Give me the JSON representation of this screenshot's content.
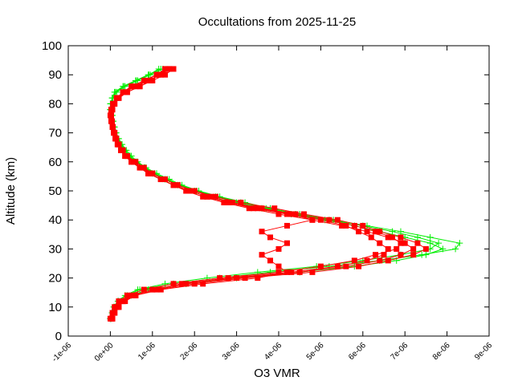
{
  "chart_data": {
    "type": "line",
    "title": "Occultations from 2025-11-25",
    "xlabel": "O3 VMR",
    "ylabel": "Altitude (km)",
    "xlim": [
      -1e-06,
      9e-06
    ],
    "ylim": [
      0,
      100
    ],
    "grid": false,
    "legend": "none",
    "x_ticks": [
      "-1e-06",
      "0e+00",
      "1e-06",
      "2e-06",
      "3e-06",
      "4e-06",
      "5e-06",
      "6e-06",
      "7e-06",
      "8e-06",
      "9e-06"
    ],
    "x_tick_values": [
      -1e-06,
      0,
      1e-06,
      2e-06,
      3e-06,
      4e-06,
      5e-06,
      6e-06,
      7e-06,
      8e-06,
      9e-06
    ],
    "y_ticks": [
      "0",
      "10",
      "20",
      "30",
      "40",
      "50",
      "60",
      "70",
      "80",
      "90",
      "100"
    ],
    "y_tick_values": [
      0,
      10,
      20,
      30,
      40,
      50,
      60,
      70,
      80,
      90,
      100
    ],
    "vmr_scale": 1e-06,
    "altitudes": [
      6,
      8,
      10,
      12,
      14,
      16,
      18,
      20,
      22,
      24,
      26,
      28,
      30,
      32,
      34,
      36,
      38,
      40,
      42,
      44,
      46,
      48,
      50,
      52,
      54,
      56,
      58,
      60,
      62,
      64,
      66,
      68,
      70,
      72,
      74,
      76,
      78,
      80,
      82,
      84,
      86,
      88,
      90,
      92
    ],
    "series": [
      {
        "name": "green-profiles",
        "color": "#00ee00",
        "marker": "cross",
        "profiles": [
          [
            0.0,
            0.05,
            0.1,
            0.2,
            0.4,
            0.7,
            1.5,
            2.6,
            3.8,
            5.2,
            6.4,
            7.4,
            8.2,
            8.3,
            7.6,
            6.9,
            6.1,
            5.3,
            4.5,
            3.8,
            3.2,
            2.6,
            2.1,
            1.7,
            1.4,
            1.1,
            0.85,
            0.65,
            0.5,
            0.38,
            0.28,
            0.2,
            0.14,
            0.1,
            0.07,
            0.05,
            0.0,
            0.0,
            0.05,
            0.1,
            0.3,
            0.6,
            0.9,
            1.2
          ],
          [
            0.02,
            0.06,
            0.12,
            0.25,
            0.5,
            0.9,
            1.8,
            3.0,
            4.5,
            5.8,
            6.8,
            7.5,
            7.9,
            7.6,
            7.0,
            6.4,
            5.8,
            5.1,
            4.3,
            3.6,
            3.0,
            2.5,
            2.0,
            1.6,
            1.3,
            1.0,
            0.8,
            0.6,
            0.45,
            0.33,
            0.24,
            0.17,
            0.12,
            0.08,
            0.05,
            0.03,
            0.0,
            0.02,
            0.06,
            0.15,
            0.35,
            0.65,
            0.95,
            1.25
          ],
          [
            0.0,
            0.04,
            0.08,
            0.18,
            0.35,
            0.65,
            1.3,
            2.3,
            3.5,
            4.9,
            6.0,
            6.9,
            7.6,
            7.8,
            7.3,
            6.7,
            6.0,
            5.2,
            4.4,
            3.7,
            3.1,
            2.55,
            2.05,
            1.65,
            1.35,
            1.05,
            0.82,
            0.62,
            0.47,
            0.35,
            0.26,
            0.18,
            0.13,
            0.09,
            0.06,
            0.04,
            0.0,
            0.01,
            0.04,
            0.12,
            0.32,
            0.62,
            0.92,
            1.15
          ]
        ]
      },
      {
        "name": "red-profiles",
        "color": "#ff0000",
        "marker": "square",
        "profiles": [
          [
            0.05,
            0.1,
            0.15,
            0.3,
            0.5,
            1.0,
            1.8,
            3.0,
            4.5,
            5.6,
            6.4,
            6.9,
            7.2,
            7.0,
            6.6,
            6.1,
            5.5,
            4.8,
            4.0,
            3.3,
            2.7,
            2.2,
            1.8,
            1.5,
            1.2,
            0.9,
            0.7,
            0.5,
            0.35,
            0.25,
            0.18,
            0.12,
            0.08,
            0.05,
            0.03,
            0.02,
            0.05,
            0.1,
            0.2,
            0.4,
            0.7,
            1.0,
            1.3,
            1.5
          ],
          [
            0.0,
            0.05,
            0.1,
            0.2,
            0.4,
            0.8,
            1.5,
            2.6,
            4.0,
            5.0,
            5.8,
            6.3,
            6.8,
            6.9,
            6.7,
            6.3,
            5.8,
            5.2,
            4.4,
            3.6,
            2.9,
            2.4,
            2.0,
            1.6,
            1.3,
            1.0,
            0.8,
            0.6,
            0.4,
            0.3,
            0.2,
            0.14,
            0.1,
            0.06,
            0.04,
            0.02,
            0.03,
            0.08,
            0.15,
            0.3,
            0.5,
            0.8,
            1.1,
            1.3
          ],
          [
            0.05,
            0.1,
            0.2,
            0.3,
            0.6,
            1.2,
            2.2,
            3.5,
            4.2,
            4.0,
            3.8,
            3.6,
            4.0,
            4.2,
            3.8,
            3.6,
            4.2,
            4.8,
            4.3,
            3.5,
            2.8,
            2.3,
            1.9,
            1.5,
            1.2,
            0.95,
            0.75,
            0.55,
            0.4,
            0.28,
            0.2,
            0.14,
            0.1,
            0.06,
            0.03,
            0.02,
            0.04,
            0.1,
            0.2,
            0.35,
            0.6,
            0.9,
            1.2,
            1.4
          ],
          [
            0.02,
            0.08,
            0.15,
            0.35,
            0.6,
            1.1,
            2.0,
            3.2,
            4.8,
            5.9,
            6.6,
            7.2,
            7.5,
            7.3,
            6.9,
            6.4,
            6.0,
            5.4,
            4.6,
            3.9,
            3.1,
            2.5,
            2.0,
            1.6,
            1.3,
            1.0,
            0.75,
            0.55,
            0.4,
            0.3,
            0.2,
            0.13,
            0.09,
            0.05,
            0.02,
            0.0,
            0.02,
            0.06,
            0.15,
            0.3,
            0.55,
            0.85,
            1.1,
            1.35
          ],
          [
            0.03,
            0.1,
            0.2,
            0.3,
            0.55,
            1.0,
            1.7,
            2.8,
            4.3,
            5.4,
            6.1,
            6.5,
            6.6,
            6.4,
            6.2,
            5.9,
            5.6,
            5.0,
            4.2,
            3.4,
            2.8,
            2.3,
            1.9,
            1.5,
            1.2,
            0.9,
            0.7,
            0.5,
            0.35,
            0.25,
            0.17,
            0.12,
            0.08,
            0.05,
            0.03,
            0.01,
            0.03,
            0.09,
            0.2,
            0.4,
            0.7,
            0.95,
            1.15,
            1.4
          ]
        ]
      }
    ]
  }
}
